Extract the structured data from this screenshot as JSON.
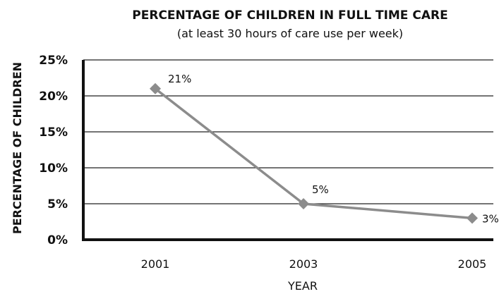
{
  "chart_data": {
    "type": "line",
    "title": "PERCENTAGE OF CHILDREN IN FULL TIME CARE",
    "subtitle": "(at least 30 hours of care use per week)",
    "xlabel": "YEAR",
    "ylabel": "PERCENTAGE OF CHILDREN",
    "categories": [
      "2001",
      "2003",
      "2005"
    ],
    "values": [
      21,
      5,
      3
    ],
    "data_labels": [
      "21%",
      "5%",
      "3%"
    ],
    "ylim": [
      0,
      25
    ],
    "yticks": [
      "0%",
      "5%",
      "10%",
      "15%",
      "20%",
      "25%"
    ],
    "grid": true,
    "colors": {
      "line": "#8c8c8c",
      "marker": "#8c8c8c",
      "axis": "#111111",
      "grid": "#222222"
    }
  }
}
